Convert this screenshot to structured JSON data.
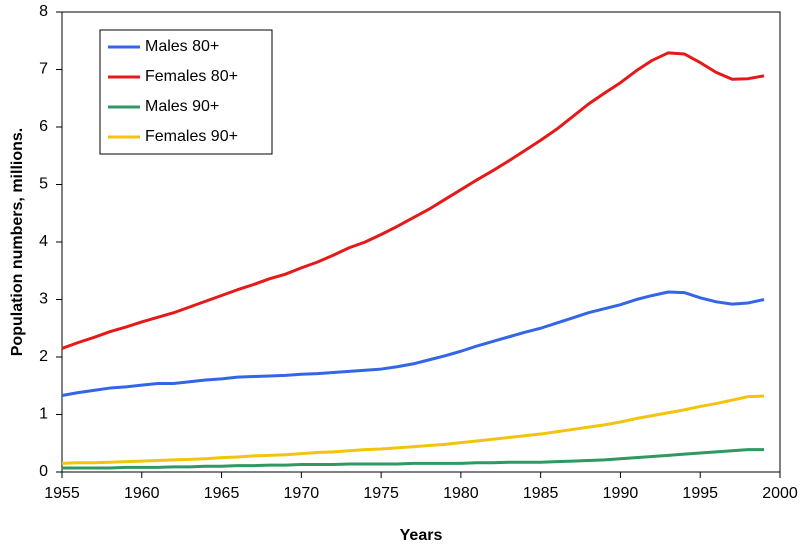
{
  "chart_data": {
    "type": "line",
    "x_label": "Years",
    "y_label": "Population numbers, millions.",
    "x": [
      1955,
      1956,
      1957,
      1958,
      1959,
      1960,
      1961,
      1962,
      1963,
      1964,
      1965,
      1966,
      1967,
      1968,
      1969,
      1970,
      1971,
      1972,
      1973,
      1974,
      1975,
      1976,
      1977,
      1978,
      1979,
      1980,
      1981,
      1982,
      1983,
      1984,
      1985,
      1986,
      1987,
      1988,
      1989,
      1990,
      1991,
      1992,
      1993,
      1994,
      1995,
      1996,
      1997,
      1998,
      1999
    ],
    "series": [
      {
        "name": "Males 80+",
        "color": "#3366e6",
        "values": [
          1.33,
          1.38,
          1.42,
          1.46,
          1.48,
          1.51,
          1.54,
          1.54,
          1.57,
          1.6,
          1.62,
          1.65,
          1.66,
          1.67,
          1.68,
          1.7,
          1.71,
          1.73,
          1.75,
          1.77,
          1.79,
          1.83,
          1.88,
          1.95,
          2.02,
          2.1,
          2.19,
          2.27,
          2.35,
          2.43,
          2.5,
          2.59,
          2.68,
          2.77,
          2.84,
          2.91,
          3.0,
          3.07,
          3.13,
          3.12,
          3.03,
          2.96,
          2.92,
          2.94,
          3.0
        ]
      },
      {
        "name": "Females 80+",
        "color": "#e61919",
        "values": [
          2.15,
          2.25,
          2.34,
          2.44,
          2.52,
          2.61,
          2.69,
          2.77,
          2.87,
          2.97,
          3.07,
          3.17,
          3.26,
          3.36,
          3.44,
          3.55,
          3.65,
          3.77,
          3.9,
          4.0,
          4.13,
          4.27,
          4.42,
          4.57,
          4.74,
          4.91,
          5.08,
          5.24,
          5.41,
          5.59,
          5.77,
          5.96,
          6.18,
          6.4,
          6.59,
          6.77,
          6.98,
          7.16,
          7.29,
          7.27,
          7.12,
          6.95,
          6.83,
          6.84,
          6.89
        ]
      },
      {
        "name": "Males 90+",
        "color": "#2e9960",
        "values": [
          0.07,
          0.07,
          0.07,
          0.07,
          0.08,
          0.08,
          0.08,
          0.09,
          0.09,
          0.1,
          0.1,
          0.11,
          0.11,
          0.12,
          0.12,
          0.13,
          0.13,
          0.13,
          0.14,
          0.14,
          0.14,
          0.14,
          0.15,
          0.15,
          0.15,
          0.15,
          0.16,
          0.16,
          0.17,
          0.17,
          0.17,
          0.18,
          0.19,
          0.2,
          0.21,
          0.23,
          0.25,
          0.27,
          0.29,
          0.31,
          0.33,
          0.35,
          0.37,
          0.39,
          0.39
        ]
      },
      {
        "name": "Females 90+",
        "color": "#f2c40d",
        "values": [
          0.15,
          0.16,
          0.16,
          0.17,
          0.18,
          0.19,
          0.2,
          0.21,
          0.22,
          0.23,
          0.25,
          0.26,
          0.28,
          0.29,
          0.3,
          0.32,
          0.34,
          0.35,
          0.37,
          0.39,
          0.4,
          0.42,
          0.44,
          0.46,
          0.48,
          0.51,
          0.54,
          0.57,
          0.6,
          0.63,
          0.66,
          0.7,
          0.74,
          0.78,
          0.82,
          0.87,
          0.93,
          0.98,
          1.03,
          1.08,
          1.14,
          1.19,
          1.25,
          1.31,
          1.32
        ]
      }
    ],
    "xlim": [
      1955,
      2000
    ],
    "xticks": [
      1955,
      1960,
      1965,
      1970,
      1975,
      1980,
      1985,
      1990,
      1995,
      2000
    ],
    "ylim": [
      0,
      8
    ],
    "yticks": [
      0,
      1,
      2,
      3,
      4,
      5,
      6,
      7,
      8
    ],
    "legend": "upper left"
  }
}
